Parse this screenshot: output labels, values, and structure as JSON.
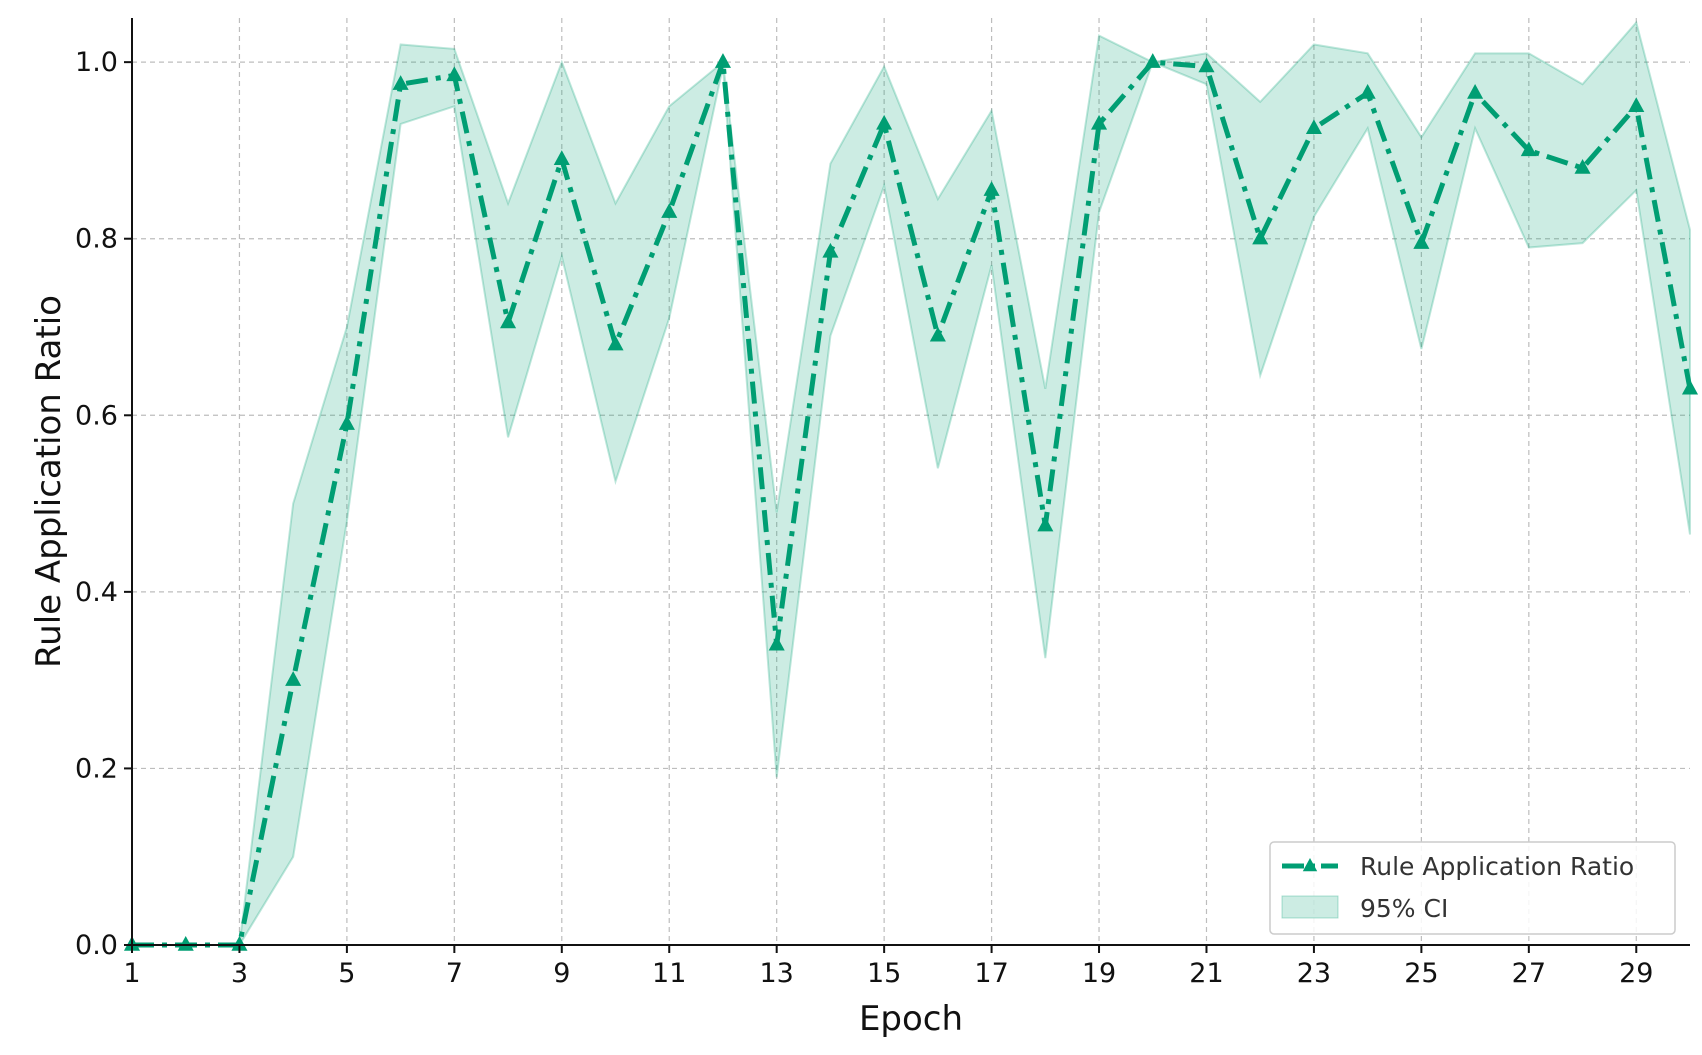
{
  "chart_data": {
    "type": "line",
    "xlabel": "Epoch",
    "ylabel": "Rule Application Ratio",
    "xlim": [
      1,
      30
    ],
    "ylim": [
      0,
      1.05
    ],
    "xticks": [
      1,
      3,
      5,
      7,
      9,
      11,
      13,
      15,
      17,
      19,
      21,
      23,
      25,
      27,
      29
    ],
    "yticks": [
      0.0,
      0.2,
      0.4,
      0.6,
      0.8,
      1.0
    ],
    "ytick_labels": [
      "0.0",
      "0.2",
      "0.4",
      "0.6",
      "0.8",
      "1.0"
    ],
    "grid": true,
    "legend_position": "bottom-right",
    "series": [
      {
        "name": "Rule Application Ratio",
        "style": "dash-dot",
        "marker": "triangle",
        "color": "#009e73",
        "x": [
          1,
          2,
          3,
          4,
          5,
          6,
          7,
          8,
          9,
          10,
          11,
          12,
          13,
          14,
          15,
          16,
          17,
          18,
          19,
          20,
          21,
          22,
          23,
          24,
          25,
          26,
          27,
          28,
          29,
          30
        ],
        "y": [
          0.0,
          0.0,
          0.0,
          0.3,
          0.59,
          0.975,
          0.985,
          0.705,
          0.89,
          0.68,
          0.83,
          1.0,
          0.34,
          0.785,
          0.93,
          0.69,
          0.855,
          0.475,
          0.93,
          1.0,
          0.995,
          0.8,
          0.925,
          0.965,
          0.795,
          0.965,
          0.9,
          0.88,
          0.95,
          0.63
        ]
      }
    ],
    "band": {
      "name": "95% CI",
      "color": "#009e73",
      "opacity": 0.2,
      "lower": [
        0.0,
        0.0,
        0.0,
        0.1,
        0.48,
        0.93,
        0.95,
        0.575,
        0.78,
        0.525,
        0.71,
        0.995,
        0.19,
        0.69,
        0.86,
        0.54,
        0.77,
        0.325,
        0.83,
        1.0,
        0.975,
        0.645,
        0.825,
        0.925,
        0.675,
        0.925,
        0.79,
        0.795,
        0.855,
        0.465
      ],
      "upper": [
        0.0,
        0.0,
        0.0,
        0.5,
        0.7,
        1.02,
        1.015,
        0.84,
        1.0,
        0.84,
        0.95,
        1.0,
        0.49,
        0.885,
        0.995,
        0.845,
        0.945,
        0.63,
        1.03,
        1.0,
        1.01,
        0.955,
        1.02,
        1.01,
        0.915,
        1.01,
        1.01,
        0.975,
        1.045,
        0.81
      ]
    }
  }
}
